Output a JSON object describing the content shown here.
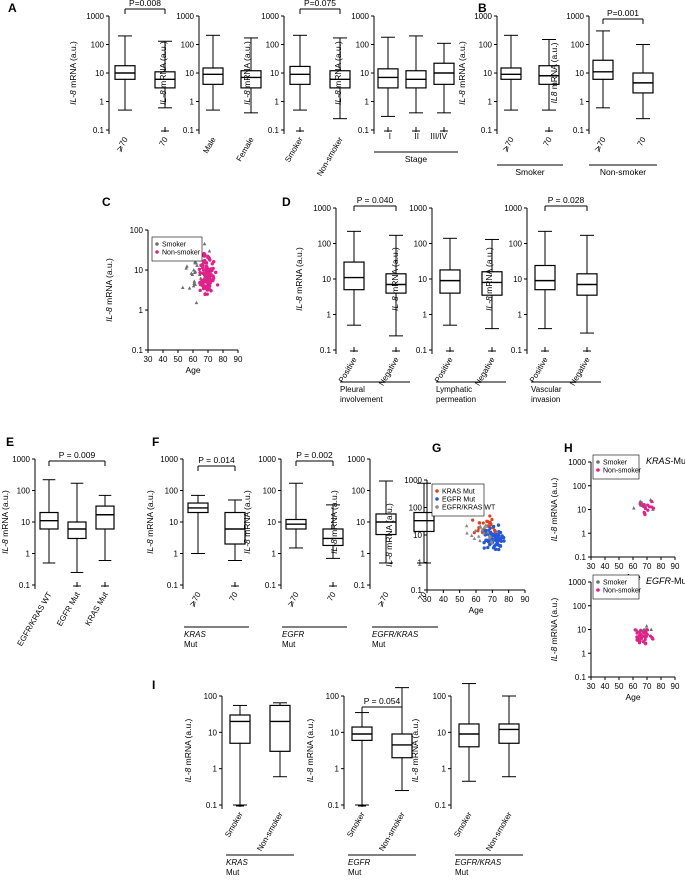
{
  "figure": {
    "colors": {
      "ink": "#000000",
      "smoker": "#6f6f6f",
      "nonsmoker": "#e0218a",
      "kras": "#e0401e",
      "egfr": "#2457d6",
      "wt": "#8a8a8a"
    }
  },
  "chart_data": [
    {
      "panel": "A",
      "subpanel": 1,
      "type": "box",
      "ylabel_it": "IL-8",
      "ylabel_rest": " mRNA (a.u.)",
      "yticks": [
        "1000",
        "100",
        "10",
        "1",
        "0.1"
      ],
      "categories": [
        "⩾70",
        "70"
      ],
      "boxes": [
        {
          "min": 0.5,
          "q1": 6,
          "median": 10,
          "q3": 18,
          "max": 200
        },
        {
          "min": 0.6,
          "q1": 3,
          "median": 6,
          "q3": 11,
          "max": 130
        }
      ],
      "outlier_at_bottom": [
        false,
        true
      ],
      "pvalue": "P=0.008",
      "bracket": [
        0,
        1
      ]
    },
    {
      "panel": "A",
      "subpanel": 2,
      "type": "box",
      "ylabel_it": "IL-8",
      "ylabel_rest": " mRNA (a.u.)",
      "yticks": [
        "1000",
        "100",
        "10",
        "1",
        "0.1"
      ],
      "categories": [
        "Male",
        "Female"
      ],
      "boxes": [
        {
          "min": 0.5,
          "q1": 4,
          "median": 9,
          "q3": 15,
          "max": 210
        },
        {
          "min": 0.4,
          "q1": 3,
          "median": 7,
          "q3": 12,
          "max": 170
        }
      ]
    },
    {
      "panel": "A",
      "subpanel": 3,
      "type": "box",
      "ylabel_it": "IL-8",
      "ylabel_rest": " mRNA (a.u.)",
      "yticks": [
        "1000",
        "100",
        "10",
        "1",
        "0.1"
      ],
      "categories": [
        "Smoker",
        "Non-smoker"
      ],
      "boxes": [
        {
          "min": 0.5,
          "q1": 4,
          "median": 9,
          "q3": 17,
          "max": 210
        },
        {
          "min": 0.25,
          "q1": 3,
          "median": 6,
          "q3": 12,
          "max": 170
        }
      ],
      "outlier_at_bottom": [
        true,
        false
      ],
      "pvalue": "P=0.075",
      "bracket": [
        0,
        1
      ]
    },
    {
      "panel": "A",
      "subpanel": 4,
      "type": "box",
      "ylabel_it": "IL-8",
      "ylabel_rest": " mRNA (a.u.)",
      "yticks": [
        "1000",
        "100",
        "10",
        "1",
        "0.1"
      ],
      "categories": [
        "I",
        "II",
        "III/IV"
      ],
      "boxes": [
        {
          "min": 0.3,
          "q1": 3,
          "median": 7,
          "q3": 14,
          "max": 180
        },
        {
          "min": 0.4,
          "q1": 3,
          "median": 6,
          "q3": 12,
          "max": 200
        },
        {
          "min": 0.4,
          "q1": 4,
          "median": 10,
          "q3": 22,
          "max": 110
        }
      ],
      "outlier_at_bottom": [
        true,
        true,
        true
      ],
      "group_label": "Stage"
    },
    {
      "panel": "B",
      "subpanel": 1,
      "type": "box",
      "ylabel_it": "IL-8",
      "ylabel_rest": " mRNA (a.u.)",
      "yticks": [
        "1000",
        "100",
        "10",
        "1",
        "0.1"
      ],
      "categories": [
        "⩾70",
        "70"
      ],
      "boxes": [
        {
          "min": 0.5,
          "q1": 6,
          "median": 9,
          "q3": 15,
          "max": 210
        },
        {
          "min": 0.5,
          "q1": 4,
          "median": 8,
          "q3": 18,
          "max": 150
        }
      ],
      "outlier_at_bottom": [
        false,
        true
      ],
      "group_label": "Smoker"
    },
    {
      "panel": "B",
      "subpanel": 2,
      "type": "box",
      "ylabel_it": "IL8",
      "ylabel_rest": " mRNA (a.u.)",
      "yticks": [
        "1000",
        "100",
        "10",
        "1",
        "0.1"
      ],
      "categories": [
        "⩾70",
        "70"
      ],
      "boxes": [
        {
          "min": 0.6,
          "q1": 6,
          "median": 11,
          "q3": 28,
          "max": 300
        },
        {
          "min": 0.25,
          "q1": 2,
          "median": 4.5,
          "q3": 10,
          "max": 100
        }
      ],
      "pvalue": "P=0.001",
      "bracket": [
        0,
        1
      ],
      "group_label": "Non-smoker"
    },
    {
      "panel": "C",
      "type": "scatter",
      "ylabel_it": "IL-8",
      "ylabel_rest": " mRNA (a.u.)",
      "xlabel": "Age",
      "xticks": [
        "30",
        "40",
        "50",
        "60",
        "70",
        "80",
        "90"
      ],
      "xlim": [
        30,
        90
      ],
      "yticks": [
        "100",
        "10",
        "1",
        "0.1"
      ],
      "legend": [
        "Smoker",
        "Non-smoker"
      ]
    },
    {
      "panel": "D",
      "subpanel": 1,
      "type": "box",
      "ylabel_it": "IL-8",
      "ylabel_rest": " mRNA (a.u.)",
      "yticks": [
        "1000",
        "100",
        "10",
        "1",
        "0.1"
      ],
      "categories": [
        "Positive",
        "Negative"
      ],
      "boxes": [
        {
          "min": 0.5,
          "q1": 5,
          "median": 11,
          "q3": 30,
          "max": 220
        },
        {
          "min": 0.25,
          "q1": 4,
          "median": 7,
          "q3": 14,
          "max": 170
        }
      ],
      "outlier_at_bottom": [
        true,
        true
      ],
      "pvalue": "P = 0.040",
      "bracket": [
        0,
        1
      ],
      "group_label": [
        "Pleural",
        "involvement"
      ]
    },
    {
      "panel": "D",
      "subpanel": 2,
      "type": "box",
      "ylabel_it": "IL-8",
      "ylabel_rest": " mRNA (a.u.)",
      "yticks": [
        "1000",
        "100",
        "10",
        "1",
        "0.1"
      ],
      "categories": [
        "Positive",
        "Negative"
      ],
      "boxes": [
        {
          "min": 0.5,
          "q1": 4,
          "median": 9,
          "q3": 18,
          "max": 140
        },
        {
          "min": 0.4,
          "q1": 3.5,
          "median": 8,
          "q3": 16,
          "max": 130
        }
      ],
      "outlier_at_bottom": [
        true,
        true
      ],
      "group_label": [
        "Lymphatic",
        "permeation"
      ]
    },
    {
      "panel": "D",
      "subpanel": 3,
      "type": "box",
      "ylabel_it": "IL-8",
      "ylabel_rest": " mRNA (a.u.)",
      "yticks": [
        "1000",
        "100",
        "10",
        "1",
        "0.1"
      ],
      "categories": [
        "Positive",
        "Negative"
      ],
      "boxes": [
        {
          "min": 0.4,
          "q1": 5,
          "median": 9,
          "q3": 24,
          "max": 220
        },
        {
          "min": 0.3,
          "q1": 3.5,
          "median": 7,
          "q3": 14,
          "max": 170
        }
      ],
      "outlier_at_bottom": [
        true,
        true
      ],
      "pvalue": "P = 0.028",
      "bracket": [
        0,
        1
      ],
      "group_label": [
        "Vascular",
        "invasion"
      ]
    },
    {
      "panel": "E",
      "type": "box",
      "ylabel_it": "IL-8",
      "ylabel_rest": " mRNA (a.u.)",
      "yticks": [
        "1000",
        "100",
        "10",
        "1",
        "0.1"
      ],
      "categories": [
        "EGFR/KRAS WT",
        "EGFR Mut",
        "KRAS Mut"
      ],
      "boxes": [
        {
          "min": 0.5,
          "q1": 6,
          "median": 11,
          "q3": 20,
          "max": 220
        },
        {
          "min": 0.25,
          "q1": 3,
          "median": 6,
          "q3": 10,
          "max": 170
        },
        {
          "min": 0.6,
          "q1": 6,
          "median": 17,
          "q3": 32,
          "max": 70
        }
      ],
      "outlier_at_bottom": [
        false,
        true,
        true
      ],
      "pvalue": "P = 0.009",
      "bracket": [
        0,
        2
      ]
    },
    {
      "panel": "F",
      "subpanel": 1,
      "type": "box",
      "ylabel_it": "IL-8",
      "ylabel_rest": " mRNA (a.u.)",
      "yticks": [
        "1000",
        "100",
        "10",
        "1",
        "0.1"
      ],
      "categories": [
        "⩾70",
        "70"
      ],
      "boxes": [
        {
          "min": 1,
          "q1": 20,
          "median": 28,
          "q3": 40,
          "max": 70
        },
        {
          "min": 0.6,
          "q1": 2,
          "median": 6,
          "q3": 20,
          "max": 50
        }
      ],
      "outlier_at_bottom": [
        false,
        true
      ],
      "pvalue": "P = 0.014",
      "bracket": [
        0,
        1
      ],
      "group_label": [
        "KRAS",
        "Mut"
      ],
      "group_italic_first": true
    },
    {
      "panel": "F",
      "subpanel": 2,
      "type": "box",
      "ylabel_it": "IL-8",
      "ylabel_rest": " mRNA (a.u.)",
      "yticks": [
        "1000",
        "100",
        "10",
        "1",
        "0.1"
      ],
      "categories": [
        "⩾70",
        "70"
      ],
      "boxes": [
        {
          "min": 1.5,
          "q1": 6,
          "median": 8.5,
          "q3": 12,
          "max": 170
        },
        {
          "min": 0.7,
          "q1": 1.8,
          "median": 3,
          "q3": 6,
          "max": 35
        }
      ],
      "outlier_at_bottom": [
        false,
        true
      ],
      "pvalue": "P = 0.002",
      "bracket": [
        0,
        1
      ],
      "group_label": [
        "EGFR",
        "Mut"
      ],
      "group_italic_first": true
    },
    {
      "panel": "F",
      "subpanel": 3,
      "type": "box",
      "ylabel_it": "IL-8",
      "ylabel_rest": " mRNA (a.u.)",
      "yticks": [
        "1000",
        "100",
        "10",
        "1",
        "0.1"
      ],
      "categories": [
        "⩾70",
        "70"
      ],
      "boxes": [
        {
          "min": 0.5,
          "q1": 4,
          "median": 10,
          "q3": 18,
          "max": 200
        },
        {
          "min": 0.5,
          "q1": 5,
          "median": 11,
          "q3": 20,
          "max": 170
        }
      ],
      "group_label": [
        "EGFR/KRAS",
        "Mut"
      ],
      "group_italic_first": true
    },
    {
      "panel": "G",
      "type": "scatter",
      "ylabel_it": "IL-8",
      "ylabel_rest": " mRNA (a.u.)",
      "xlabel": "Age",
      "xticks": [
        "30",
        "40",
        "50",
        "60",
        "70",
        "80",
        "90"
      ],
      "xlim": [
        30,
        90
      ],
      "yticks": [
        "1000",
        "100",
        "10",
        "1",
        "0.1"
      ],
      "legend": [
        "KRAS Mut",
        "EGFR Mut",
        "EGFR/KRAS WT"
      ]
    },
    {
      "panel": "H",
      "subpanel": 1,
      "type": "scatter",
      "ylabel_it": "IL-8",
      "ylabel_rest": " mRNA (a.u.)",
      "xlabel": "Age",
      "xticks": [
        "30",
        "40",
        "50",
        "60",
        "70",
        "80",
        "90"
      ],
      "xlim": [
        30,
        90
      ],
      "yticks": [
        "1000",
        "100",
        "10",
        "1",
        "0.1"
      ],
      "legend": [
        "Smoker",
        "Non-smoker"
      ],
      "title_it": "KRAS",
      "title_rest": "-Mut"
    },
    {
      "panel": "H",
      "subpanel": 2,
      "type": "scatter",
      "ylabel_it": "IL-8",
      "ylabel_rest": " mRNA (a.u.)",
      "xlabel": "Age",
      "xticks": [
        "30",
        "40",
        "50",
        "60",
        "70",
        "80",
        "90"
      ],
      "xlim": [
        30,
        90
      ],
      "yticks": [
        "1000",
        "100",
        "10",
        "1",
        "0.1"
      ],
      "legend": [
        "Smoker",
        "Non-smoker"
      ],
      "title_it": "EGFR",
      "title_rest": "-Mut"
    },
    {
      "panel": "I",
      "subpanel": 1,
      "type": "box",
      "ylabel_it": "IL-8",
      "ylabel_rest": " mRNA (a.u.)",
      "yticks": [
        "100",
        "10",
        "1",
        "0.1"
      ],
      "categories": [
        "Smoker",
        "Non-smoker"
      ],
      "boxes": [
        {
          "min": 0.1,
          "q1": 5,
          "median": 20,
          "q3": 30,
          "max": 55
        },
        {
          "min": 0.6,
          "q1": 3,
          "median": 20,
          "q3": 55,
          "max": 65
        }
      ],
      "outlier_at_bottom": [
        true,
        false
      ],
      "group_label": [
        "KRAS",
        "Mut"
      ],
      "group_italic_first": true
    },
    {
      "panel": "I",
      "subpanel": 2,
      "type": "box",
      "ylabel_it": "IL-8",
      "ylabel_rest": " mRNA (a.u.)",
      "yticks": [
        "100",
        "10",
        "1",
        "0.1"
      ],
      "categories": [
        "Smoker",
        "Non-smoker"
      ],
      "boxes": [
        {
          "min": 0.1,
          "q1": 6,
          "median": 9,
          "q3": 14,
          "max": 35
        },
        {
          "min": 0.25,
          "q1": 2,
          "median": 4.5,
          "q3": 9,
          "max": 170
        }
      ],
      "outlier_at_bottom": [
        true,
        false
      ],
      "pvalue": "P = 0.054",
      "bracket": [
        0,
        1
      ],
      "group_label": [
        "EGFR",
        "Mut"
      ],
      "group_italic_first": true
    },
    {
      "panel": "I",
      "subpanel": 3,
      "type": "box",
      "ylabel_it": "IL-8",
      "ylabel_rest": " mRNA (a.u.)",
      "yticks": [
        "100",
        "10",
        "1",
        "0.1"
      ],
      "categories": [
        "Smoker",
        "Non-smoker"
      ],
      "boxes": [
        {
          "min": 0.45,
          "q1": 4,
          "median": 9,
          "q3": 17,
          "max": 220
        },
        {
          "min": 0.6,
          "q1": 5,
          "median": 12,
          "q3": 17,
          "max": 100
        }
      ],
      "group_label": [
        "EGFR/KRAS",
        "Mut"
      ],
      "group_italic_first": true
    }
  ]
}
